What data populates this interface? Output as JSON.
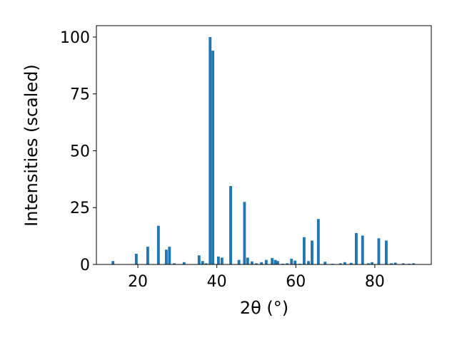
{
  "chart_data": {
    "type": "bar",
    "x_label": "2θ (°)",
    "y_label": "Intensities (scaled)",
    "color": "#1f77b4",
    "x": [
      13.7,
      19.6,
      22.5,
      25.2,
      27.2,
      28.0,
      29.2,
      31.7,
      35.5,
      36.4,
      37.3,
      38.3,
      39.0,
      40.4,
      41.3,
      43.5,
      45.6,
      47.0,
      47.8,
      48.9,
      50.0,
      51.3,
      52.5,
      54.0,
      54.8,
      55.4,
      56.7,
      57.8,
      58.9,
      59.8,
      61.0,
      62.1,
      63.2,
      64.1,
      65.7,
      67.4,
      69.3,
      71.3,
      72.4,
      74.0,
      75.3,
      76.9,
      78.4,
      79.3,
      81.0,
      82.9,
      84.2,
      85.2,
      87.2,
      88.7,
      89.8
    ],
    "values": [
      1.5,
      4.7,
      7.8,
      17,
      6.5,
      7.8,
      0.5,
      1,
      4,
      1.5,
      0.5,
      100,
      94,
      3.5,
      3,
      34.5,
      2,
      27.5,
      3,
      1.3,
      0.5,
      1,
      2,
      2.8,
      2,
      1.5,
      0.3,
      0.5,
      2.5,
      1.7,
      0.3,
      12,
      1.5,
      10.5,
      20,
      1.2,
      0.3,
      0.5,
      1,
      0.7,
      13.8,
      12.7,
      0.5,
      1,
      11.5,
      10.5,
      0.5,
      0.8,
      0.5,
      0.3,
      0.5
    ],
    "xlim": [
      9.5,
      94.3
    ],
    "xticks": [
      20,
      40,
      60,
      80
    ],
    "ylim": [
      0,
      105
    ],
    "yticks": [
      0,
      25,
      50,
      75,
      100
    ],
    "grid": false
  }
}
